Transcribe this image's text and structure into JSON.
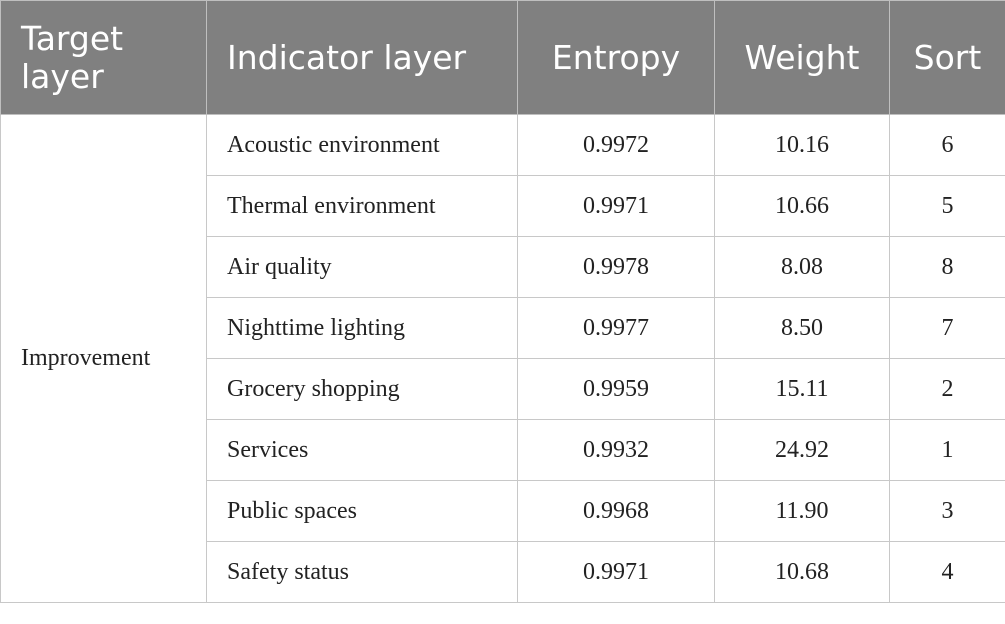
{
  "table": {
    "columns": [
      "Target layer",
      "Indicator layer",
      "Entropy",
      "Weight",
      "Sort"
    ],
    "target_layer": "Improvement",
    "rows": [
      [
        "Acoustic environment",
        "0.9972",
        "10.16",
        "6"
      ],
      [
        "Thermal environment",
        "0.9971",
        "10.66",
        "5"
      ],
      [
        "Air quality",
        "0.9978",
        "8.08",
        "8"
      ],
      [
        "Nighttime lighting",
        "0.9977",
        "8.50",
        "7"
      ],
      [
        "Grocery shopping",
        "0.9959",
        "15.11",
        "2"
      ],
      [
        "Services",
        "0.9932",
        "24.92",
        "1"
      ],
      [
        "Public spaces",
        "0.9968",
        "11.90",
        "3"
      ],
      [
        "Safety status",
        "0.9971",
        "10.68",
        "4"
      ]
    ]
  }
}
